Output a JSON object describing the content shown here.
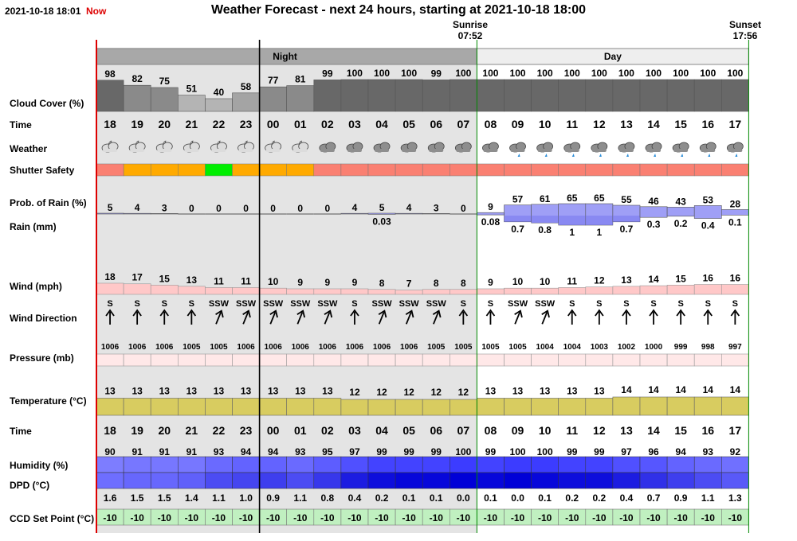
{
  "header": {
    "timestamp": "2021-10-18 18:01",
    "now_label": "Now",
    "title": "Weather Forecast - next 24 hours, starting at 2021-10-18 18:00",
    "sunrise_label": "Sunrise",
    "sunrise_time": "07:52",
    "sunset_label": "Sunset",
    "sunset_time": "17:56",
    "night_label": "Night",
    "day_label": "Day"
  },
  "row_labels": {
    "cloud": "Cloud Cover (%)",
    "time": "Time",
    "weather": "Weather",
    "shutter": "Shutter Safety",
    "prob": "Prob. of Rain (%)",
    "rain": "Rain (mm)",
    "wind": "Wind (mph)",
    "winddir": "Wind Direction",
    "pressure": "Pressure (mb)",
    "temperature": "Temperature (°C)",
    "time2": "Time",
    "humidity": "Humidity (%)",
    "dpd": "DPD (°C)",
    "ccd": "CCD Set Point (°C)"
  },
  "colors": {
    "night_bg": "#e4e4e4",
    "day_bg": "#ffffff",
    "now_red": "#dd0000",
    "sun_green": "#008800",
    "cloud_high": "#686868",
    "cloud_mid": "#9a9a9a",
    "cloud_low": "#c4c4c4",
    "shutter_safe": "#00ee00",
    "shutter_warn": "#ffaa00",
    "shutter_unsafe": "#fa8072",
    "rain": "#9f9ff6",
    "wind": "#ffc8c8",
    "pressure": "#ffe8e8",
    "temperature": "#d8cc60",
    "humidity": "#4b4bff",
    "dpd": "#0000d8",
    "ccd": "#c0f0c0"
  },
  "chart_data": {
    "type": "table",
    "hours": [
      "18",
      "19",
      "20",
      "21",
      "22",
      "23",
      "00",
      "01",
      "02",
      "03",
      "04",
      "05",
      "06",
      "07",
      "08",
      "09",
      "10",
      "11",
      "12",
      "13",
      "14",
      "15",
      "16",
      "17"
    ],
    "cloud_cover": [
      98,
      82,
      75,
      51,
      40,
      58,
      77,
      81,
      99,
      100,
      100,
      100,
      99,
      100,
      100,
      100,
      100,
      100,
      100,
      100,
      100,
      100,
      100,
      100
    ],
    "weather_icons": [
      "partly-cloudy-night-icon",
      "partly-cloudy-night-icon",
      "partly-cloudy-night-icon",
      "partly-cloudy-night-icon",
      "partly-cloudy-night-icon",
      "partly-cloudy-night-icon",
      "partly-cloudy-night-icon",
      "partly-cloudy-night-icon",
      "cloudy-icon",
      "cloudy-icon",
      "cloudy-icon",
      "cloudy-icon",
      "cloudy-icon",
      "cloudy-icon",
      "cloudy-icon",
      "light-rain-icon",
      "light-rain-icon",
      "light-rain-icon",
      "light-rain-icon",
      "light-rain-icon",
      "light-rain-icon",
      "light-rain-icon",
      "light-rain-icon",
      "light-rain-icon"
    ],
    "shutter_safety": [
      "unsafe",
      "caution",
      "caution",
      "caution",
      "safe",
      "caution",
      "caution",
      "caution",
      "unsafe",
      "unsafe",
      "unsafe",
      "unsafe",
      "unsafe",
      "unsafe",
      "unsafe",
      "unsafe",
      "unsafe",
      "unsafe",
      "unsafe",
      "unsafe",
      "unsafe",
      "unsafe",
      "unsafe",
      "unsafe"
    ],
    "prob_rain": [
      5,
      4,
      3,
      0,
      0,
      0,
      0,
      0,
      0,
      4,
      5,
      4,
      3,
      0,
      9,
      57,
      61,
      65,
      65,
      55,
      46,
      43,
      53,
      28
    ],
    "rain_mm": [
      null,
      null,
      null,
      null,
      null,
      null,
      null,
      null,
      null,
      null,
      0.03,
      null,
      null,
      null,
      0.08,
      0.7,
      0.8,
      1.0,
      1.0,
      0.7,
      0.3,
      0.2,
      0.4,
      0.1
    ],
    "wind_mph": [
      18,
      17,
      15,
      13,
      11,
      11,
      10,
      9,
      9,
      9,
      8,
      7,
      8,
      8,
      9,
      10,
      10,
      11,
      12,
      13,
      14,
      15,
      16,
      16
    ],
    "wind_direction": [
      "S",
      "S",
      "S",
      "S",
      "SSW",
      "SSW",
      "SSW",
      "SSW",
      "SSW",
      "S",
      "SSW",
      "SSW",
      "SSW",
      "S",
      "S",
      "SSW",
      "SSW",
      "S",
      "S",
      "S",
      "S",
      "S",
      "S",
      "S"
    ],
    "pressure_mb": [
      1006,
      1006,
      1006,
      1005,
      1005,
      1006,
      1006,
      1006,
      1006,
      1006,
      1006,
      1006,
      1005,
      1005,
      1005,
      1005,
      1004,
      1004,
      1003,
      1002,
      1000,
      999,
      998,
      997
    ],
    "temperature_c": [
      13,
      13,
      13,
      13,
      13,
      13,
      13,
      13,
      13,
      12,
      12,
      12,
      12,
      12,
      13,
      13,
      13,
      13,
      13,
      14,
      14,
      14,
      14,
      14
    ],
    "humidity_pct": [
      90,
      91,
      91,
      91,
      93,
      94,
      94,
      93,
      95,
      97,
      99,
      99,
      99,
      100,
      99,
      100,
      100,
      99,
      99,
      97,
      96,
      94,
      93,
      92
    ],
    "dpd_c": [
      "1.6",
      "1.5",
      "1.5",
      "1.4",
      "1.1",
      "1.0",
      "0.9",
      "1.1",
      "0.8",
      "0.4",
      "0.2",
      "0.1",
      "0.1",
      "0.0",
      "0.1",
      "0.0",
      "0.1",
      "0.2",
      "0.2",
      "0.4",
      "0.7",
      "0.9",
      "1.1",
      "1.3"
    ],
    "ccd_set_point_c": [
      -10,
      -10,
      -10,
      -10,
      -10,
      -10,
      -10,
      -10,
      -10,
      -10,
      -10,
      -10,
      -10,
      -10,
      -10,
      -10,
      -10,
      -10,
      -10,
      -10,
      -10,
      -10,
      -10,
      -10
    ]
  }
}
